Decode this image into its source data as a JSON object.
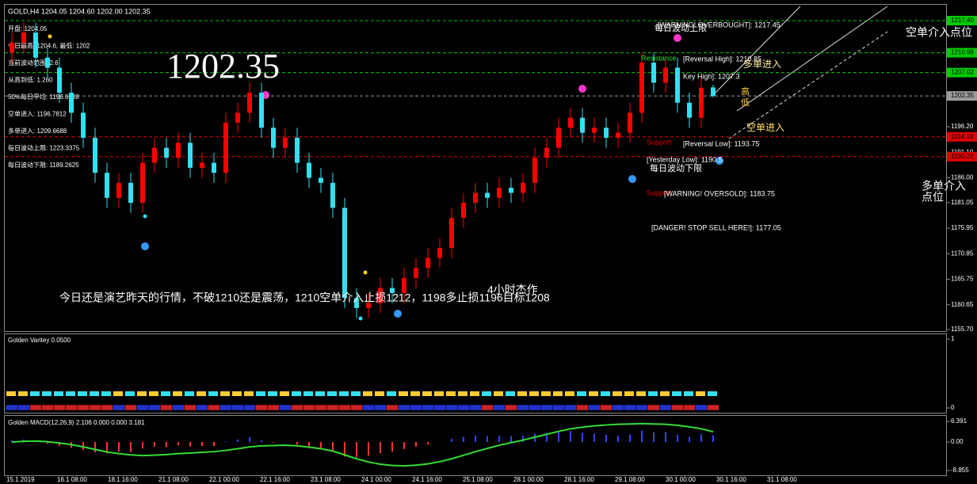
{
  "header": "GOLD,H4 1204.05 1204.60 1202.00 1202.35",
  "info_panel": [
    "开盘: 1204.05",
    "今日最高: 1204.6, 最低: 1202",
    "当前波动范围: 2.6",
    "从高到低: 1.260",
    "50%每日平均: 1196.6688",
    "空单进入: 1196.7812",
    "多单进入: 1209.6688",
    "每日波动上限: 1223.3375",
    "每日波动下限: 1189.2625"
  ],
  "annotations": {
    "price_big": "1202.35",
    "short_zone": "空单介入点位",
    "long_zone_1": "多单介入",
    "long_zone_2": "点位",
    "comment": "今日还是演艺昨天的行情，不破1210还是震荡，1210空单介入止损1212，1198多止损1196目标1208",
    "signature": "4小时杰作",
    "overbought": "[WARNING! OVERBOUGHT]: 1217.45",
    "daily_upper": "每日波动上限",
    "resistance": "Resistance",
    "reversal_high": "[Reversal High]: 1210.85",
    "key_high": "Key High]: 1207.3",
    "long_entry": "多单进入",
    "high_mark": "高",
    "low_mark": "低",
    "short_entry": "空单进入",
    "support_1": "Support",
    "reversal_low": "[Reversal Low]: 1193.75",
    "yesterday_low": "[Yesterday Low]: 1190.5",
    "daily_lower": "每日波动下限",
    "support_2": "Support",
    "oversold": "[WARNING! OVERSOLD]: 1183.75",
    "danger": "[DANGER! STOP SELL HERE!]: 1177.05"
  },
  "time_labels": [
    "15.1 2019",
    "16.1 08:00",
    "18.1 16:00",
    "21.1 08:00",
    "22.1 00:00",
    "22.1 16:00",
    "23.1 08:00",
    "24.1 00:00",
    "24.1 16:00",
    "25.1 08:00",
    "28.1 00:00",
    "28.1 16:00",
    "29.1 08:00",
    "30.1 00:00",
    "30.1 16:00",
    "31.1 08:00"
  ],
  "chart_data": [
    {
      "type": "candlestick",
      "up_color": "#ff0000",
      "down_color": "#33e0f0",
      "ylim": [
        1155.7,
        1217.4
      ],
      "yticks": [
        {
          "value": 1155.7,
          "label": "1155.70"
        },
        {
          "value": 1160.65,
          "label": "1160.65"
        },
        {
          "value": 1165.75,
          "label": "1165.75"
        },
        {
          "value": 1170.85,
          "label": "1170.85"
        },
        {
          "value": 1175.95,
          "label": "1175.95"
        },
        {
          "value": 1181.05,
          "label": "1181.05"
        },
        {
          "value": 1186,
          "label": "1186.00"
        },
        {
          "value": 1191.1,
          "label": "1191.10"
        },
        {
          "value": 1196.2,
          "label": "1196.20"
        }
      ],
      "levels": [
        {
          "value": 1217.4,
          "label": "1217.40",
          "color": "#00cc00"
        },
        {
          "value": 1210.98,
          "label": "1210.98",
          "color": "#00cc00"
        },
        {
          "value": 1207.02,
          "label": "1207.02",
          "color": "#00cc00"
        },
        {
          "value": 1202.35,
          "label": "1202.35",
          "color": "#9a9a9a"
        },
        {
          "value": 1194.18,
          "label": "1194.18",
          "color": "#e00000"
        },
        {
          "value": 1190.22,
          "label": "1190.22",
          "color": "#e00000"
        }
      ],
      "open": [
        1211,
        1213,
        1215,
        1210,
        1208,
        1203,
        1199,
        1194,
        1187,
        1182,
        1185,
        1181,
        1189,
        1192,
        1190,
        1193,
        1188,
        1189,
        1187,
        1197,
        1199,
        1203,
        1196,
        1192,
        1194,
        1189,
        1186,
        1185,
        1180,
        1162,
        1160,
        1161,
        1164,
        1163,
        1166,
        1168,
        1170,
        1172,
        1178,
        1181,
        1183,
        1182,
        1184,
        1183,
        1185,
        1190,
        1192,
        1196,
        1198,
        1195,
        1196,
        1194,
        1195,
        1199,
        1209,
        1205,
        1208,
        1201,
        1198,
        1204.05
      ],
      "high": [
        1215,
        1217,
        1217,
        1212,
        1210,
        1205,
        1201,
        1196,
        1189,
        1187,
        1187,
        1191,
        1194,
        1194,
        1195,
        1195,
        1191,
        1191,
        1199,
        1201,
        1205,
        1205,
        1198,
        1196,
        1196,
        1191,
        1188,
        1187,
        1182,
        1164,
        1163,
        1166,
        1166,
        1168,
        1170,
        1172,
        1174,
        1180,
        1183,
        1185,
        1185,
        1186,
        1186,
        1187,
        1192,
        1194,
        1198,
        1200,
        1200,
        1198,
        1198,
        1197,
        1201,
        1211,
        1211,
        1210,
        1210,
        1203,
        1206,
        1204.6
      ],
      "low": [
        1209,
        1211,
        1208,
        1206,
        1201,
        1197,
        1192,
        1185,
        1180,
        1180,
        1179,
        1179,
        1187,
        1188,
        1188,
        1186,
        1186,
        1185,
        1185,
        1195,
        1197,
        1194,
        1190,
        1190,
        1187,
        1184,
        1183,
        1178,
        1160,
        1158,
        1158,
        1159,
        1161,
        1161,
        1164,
        1166,
        1168,
        1170,
        1176,
        1179,
        1180,
        1180,
        1181,
        1181,
        1183,
        1188,
        1190,
        1194,
        1193,
        1193,
        1192,
        1192,
        1193,
        1197,
        1203,
        1203,
        1199,
        1196,
        1196,
        1202
      ],
      "close": [
        1213,
        1215,
        1210,
        1208,
        1203,
        1199,
        1194,
        1187,
        1182,
        1185,
        1181,
        1189,
        1192,
        1190,
        1193,
        1188,
        1189,
        1187,
        1197,
        1199,
        1203,
        1196,
        1192,
        1194,
        1189,
        1186,
        1185,
        1180,
        1162,
        1160,
        1161,
        1164,
        1163,
        1166,
        1168,
        1170,
        1172,
        1178,
        1181,
        1183,
        1182,
        1184,
        1183,
        1185,
        1190,
        1192,
        1196,
        1198,
        1195,
        1196,
        1194,
        1195,
        1199,
        1209,
        1205,
        1208,
        1201,
        1198,
        1204,
        1202.35
      ]
    },
    {
      "type": "signal",
      "title": "Golden Varitey 0.0500",
      "ylim": [
        0,
        1
      ],
      "yticks": [
        0,
        1
      ]
    },
    {
      "type": "macd",
      "title": "Golden MACD(12,26,9) 2.106 0.000 0.000 3.181",
      "ylim": [
        -8.855,
        6.391
      ],
      "yticks": [
        {
          "value": -8.855,
          "label": "-8.855"
        },
        {
          "value": 0,
          "label": "0.00"
        },
        {
          "value": 6.391,
          "label": "6.391"
        }
      ],
      "line_color": "#33dd33",
      "histogram": [
        0.5,
        0.8,
        0.3,
        -0.5,
        -1.2,
        -1.8,
        -2.5,
        -3.2,
        -3.5,
        -3,
        -3.2,
        -2,
        -1.5,
        -1.6,
        -1,
        -1.4,
        -1.2,
        -1.3,
        0.2,
        0.8,
        1.5,
        0.5,
        -0.2,
        0,
        -0.8,
        -1.5,
        -1.8,
        -2.5,
        -4.5,
        -4.8,
        -4.2,
        -3.5,
        -3,
        -2.2,
        -1.5,
        -0.8,
        0,
        1,
        1.6,
        2,
        1.8,
        2,
        1.8,
        2,
        2.6,
        2.8,
        3.2,
        3.4,
        2.8,
        2.6,
        2.2,
        2,
        2.3,
        3.5,
        3,
        3.1,
        2.2,
        1.6,
        2.4,
        2.1
      ],
      "signal": [
        0,
        0.2,
        0.3,
        0.1,
        -0.3,
        -0.8,
        -1.5,
        -2.3,
        -3.1,
        -3.6,
        -4,
        -4.2,
        -4.1,
        -3.9,
        -3.6,
        -3.4,
        -3.2,
        -3,
        -2.6,
        -2.1,
        -1.5,
        -1.2,
        -1.1,
        -1,
        -1.2,
        -1.6,
        -2.1,
        -2.8,
        -4,
        -5.2,
        -6.2,
        -6.9,
        -7.3,
        -7.4,
        -7.2,
        -6.8,
        -6.1,
        -5.2,
        -4.1,
        -3,
        -2,
        -1,
        -0.2,
        0.6,
        1.5,
        2.4,
        3.3,
        4.1,
        4.6,
        5,
        5.3,
        5.5,
        5.6,
        5.7,
        5.6,
        5.5,
        5.2,
        4.7,
        4.1,
        3.181
      ]
    }
  ]
}
